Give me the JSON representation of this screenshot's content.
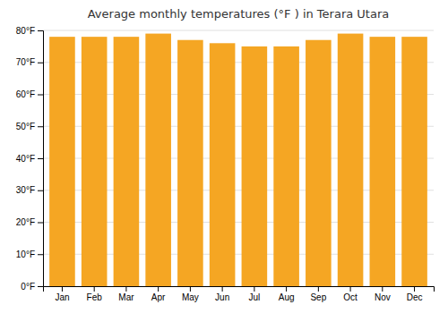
{
  "chart_data": {
    "type": "bar",
    "title": "Average monthly temperatures (°F ) in Terara Utara",
    "categories": [
      "Jan",
      "Feb",
      "Mar",
      "Apr",
      "May",
      "Jun",
      "Jul",
      "Aug",
      "Sep",
      "Oct",
      "Nov",
      "Dec"
    ],
    "values": [
      78,
      78,
      78,
      79,
      77,
      76,
      75,
      75,
      77,
      79,
      78,
      78
    ],
    "color": "#F5A623",
    "ylim": [
      0,
      80
    ],
    "yticks": [
      {
        "value": 0,
        "label": "0°F"
      },
      {
        "value": 10,
        "label": "10°F"
      },
      {
        "value": 20,
        "label": "20°F"
      },
      {
        "value": 30,
        "label": "30°F"
      },
      {
        "value": 40,
        "label": "40°F"
      },
      {
        "value": 50,
        "label": "50°F"
      },
      {
        "value": 60,
        "label": "60°F"
      },
      {
        "value": 70,
        "label": "70°F"
      },
      {
        "value": 80,
        "label": "80°F"
      }
    ],
    "grid": true
  }
}
